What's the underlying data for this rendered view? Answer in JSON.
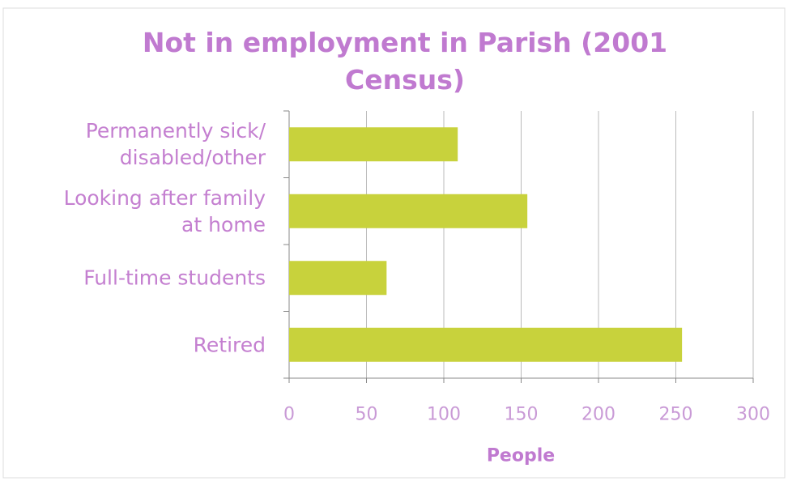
{
  "chart_data": {
    "type": "barh",
    "title": "Not in employment in Parish (2001 Census)",
    "categories": [
      "Permanently sick/\ndisabled/other",
      "Looking after family\nat home",
      "Full-time students",
      "Retired"
    ],
    "values": [
      109,
      154,
      63,
      254
    ],
    "color": "#c8d23c",
    "xlabel": "People",
    "xlim": [
      0,
      300
    ],
    "xticks": [
      0,
      50,
      100,
      150,
      200,
      250,
      300
    ],
    "grid": true
  }
}
